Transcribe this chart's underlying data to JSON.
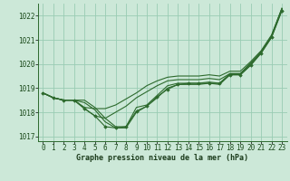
{
  "title": "Graphe pression niveau de la mer (hPa)",
  "background_color": "#cce8d8",
  "plot_bg_color": "#cce8d8",
  "grid_color": "#99ccb3",
  "line_color": "#2d6a2d",
  "xlim": [
    -0.5,
    23.5
  ],
  "ylim": [
    1016.8,
    1022.5
  ],
  "yticks": [
    1017,
    1018,
    1019,
    1020,
    1021,
    1022
  ],
  "xticks": [
    0,
    1,
    2,
    3,
    4,
    5,
    6,
    7,
    8,
    9,
    10,
    11,
    12,
    13,
    14,
    15,
    16,
    17,
    18,
    19,
    20,
    21,
    22,
    23
  ],
  "series": [
    [
      1018.8,
      1018.6,
      1018.5,
      1018.5,
      1018.5,
      1018.2,
      1017.75,
      1017.4,
      1017.4,
      1018.2,
      1018.3,
      1018.7,
      1019.1,
      1019.2,
      1019.2,
      1019.2,
      1019.25,
      1019.2,
      1019.6,
      1019.6,
      1020.0,
      1020.5,
      1021.15,
      1022.3
    ],
    [
      1018.8,
      1018.6,
      1018.5,
      1018.5,
      1018.4,
      1018.1,
      1017.6,
      1017.35,
      1017.35,
      1018.0,
      1018.25,
      1018.6,
      1019.0,
      1019.15,
      1019.15,
      1019.15,
      1019.2,
      1019.15,
      1019.55,
      1019.55,
      1019.95,
      1020.45,
      1021.1,
      1022.25
    ],
    [
      1018.8,
      1018.6,
      1018.5,
      1018.5,
      1018.15,
      1017.85,
      1017.4,
      1017.35,
      1017.4,
      1018.05,
      1018.25,
      1018.65,
      1018.95,
      1019.15,
      1019.2,
      1019.2,
      1019.2,
      1019.2,
      1019.55,
      1019.55,
      1019.95,
      1020.45,
      1021.1,
      1022.2
    ],
    [
      1018.8,
      1018.6,
      1018.5,
      1018.5,
      1018.15,
      1017.85,
      1017.75,
      1018.0,
      1018.25,
      1018.6,
      1018.85,
      1019.1,
      1019.3,
      1019.35,
      1019.35,
      1019.35,
      1019.4,
      1019.35,
      1019.6,
      1019.6,
      1020.05,
      1020.5,
      1021.15,
      1022.3
    ],
    [
      1018.8,
      1018.6,
      1018.5,
      1018.5,
      1018.2,
      1018.15,
      1018.15,
      1018.3,
      1018.55,
      1018.8,
      1019.1,
      1019.3,
      1019.45,
      1019.5,
      1019.5,
      1019.5,
      1019.55,
      1019.5,
      1019.7,
      1019.7,
      1020.1,
      1020.55,
      1021.2,
      1022.3
    ]
  ],
  "marker_series_idx": 2,
  "marker": "D",
  "marker_size": 1.8,
  "tick_fontsize": 5.5,
  "xlabel_fontsize": 6.0
}
